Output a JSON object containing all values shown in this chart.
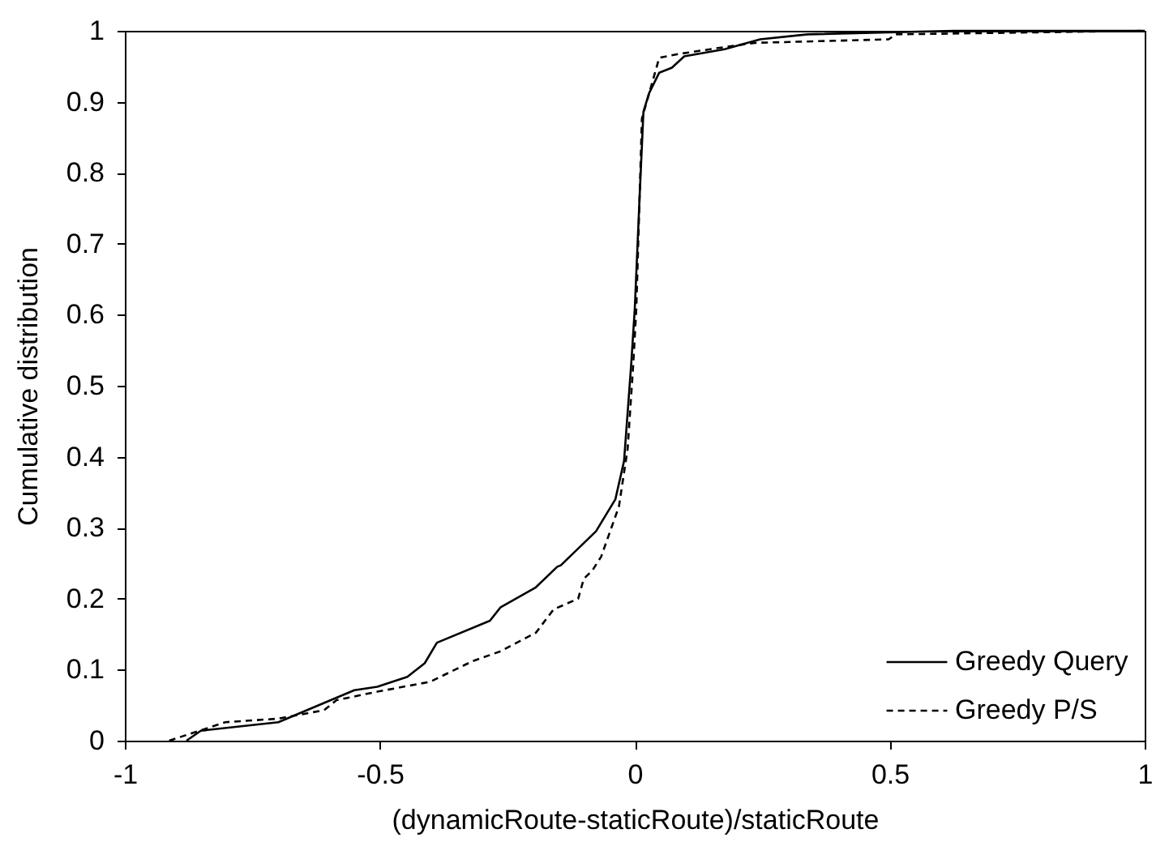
{
  "chart_data": {
    "type": "line",
    "xlabel": "(dynamicRoute-staticRoute)/staticRoute",
    "ylabel": "Cumulative distribution",
    "xlim": [
      -1,
      1
    ],
    "xticks": [
      -1,
      -0.5,
      0,
      0.5,
      1
    ],
    "ylim": [
      0,
      1
    ],
    "yticks": [
      0,
      0.1,
      0.2,
      0.3,
      0.4,
      0.5,
      0.6,
      0.7,
      0.8,
      0.9,
      1
    ],
    "grid": false,
    "legend": "bottom right",
    "marker": "none",
    "series": [
      {
        "name": "Greedy Query",
        "color": "#000000",
        "line_style": "solid",
        "x": [
          -0.879,
          -0.851,
          -0.699,
          -0.55,
          -0.505,
          -0.446,
          -0.412,
          -0.388,
          -0.284,
          -0.263,
          -0.194,
          -0.152,
          -0.145,
          -0.076,
          -0.038,
          -0.021,
          -0.007,
          0,
          0.01,
          0.017,
          0.028,
          0.048,
          0.073,
          0.097,
          0.176,
          0.246,
          0.339,
          0.626,
          1
        ],
        "values": [
          0,
          0.014,
          0.026,
          0.071,
          0.076,
          0.09,
          0.109,
          0.138,
          0.169,
          0.188,
          0.216,
          0.245,
          0.247,
          0.295,
          0.34,
          0.394,
          0.53,
          0.608,
          0.774,
          0.886,
          0.912,
          0.941,
          0.948,
          0.964,
          0.974,
          0.988,
          0.995,
          1,
          1
        ]
      },
      {
        "name": "Greedy P/S",
        "color": "#000000",
        "line_style": "dashed",
        "x": [
          -0.913,
          -0.803,
          -0.699,
          -0.609,
          -0.585,
          -0.505,
          -0.401,
          -0.318,
          -0.263,
          -0.194,
          -0.159,
          -0.111,
          -0.1,
          -0.09,
          -0.083,
          -0.066,
          -0.031,
          -0.014,
          -0.003,
          0.003,
          0.014,
          0.048,
          0.083,
          0.166,
          0.235,
          0.498,
          0.512,
          1
        ],
        "values": [
          0,
          0.026,
          0.031,
          0.043,
          0.057,
          0.069,
          0.083,
          0.112,
          0.126,
          0.152,
          0.185,
          0.2,
          0.228,
          0.235,
          0.24,
          0.259,
          0.33,
          0.411,
          0.53,
          0.608,
          0.876,
          0.962,
          0.967,
          0.976,
          0.983,
          0.988,
          0.995,
          1
        ]
      }
    ]
  }
}
